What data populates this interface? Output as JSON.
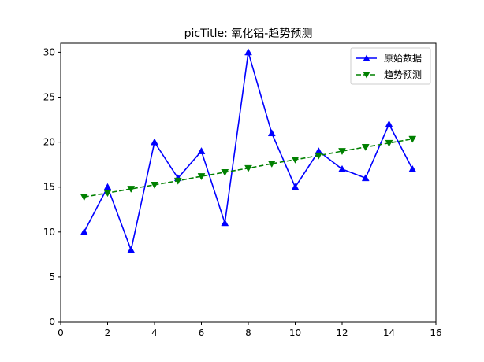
{
  "chart_data": {
    "type": "line",
    "title": "picTitle: 氧化铝-趋势预测",
    "xlabel": "",
    "ylabel": "",
    "xlim": [
      0,
      16
    ],
    "ylim": [
      0,
      31
    ],
    "xticks": [
      0,
      2,
      4,
      6,
      8,
      10,
      12,
      14,
      16
    ],
    "yticks": [
      0,
      5,
      10,
      15,
      20,
      25,
      30
    ],
    "grid": false,
    "legend_position": "top-right",
    "x": [
      1,
      2,
      3,
      4,
      5,
      6,
      7,
      8,
      9,
      10,
      11,
      12,
      13,
      14,
      15
    ],
    "series": [
      {
        "name": "原始数据",
        "color": "#0000ff",
        "marker": "triangle-up",
        "line_style": "solid",
        "values": [
          10,
          15,
          8,
          20,
          16,
          19,
          11,
          30,
          21,
          15,
          19,
          17,
          16,
          22,
          17
        ]
      },
      {
        "name": "趋势预测",
        "color": "#008000",
        "marker": "triangle-down",
        "line_style": "dashed",
        "values": [
          13.9,
          14.35,
          14.8,
          15.25,
          15.7,
          16.2,
          16.65,
          17.1,
          17.6,
          18.05,
          18.5,
          19.0,
          19.45,
          19.9,
          20.35
        ]
      }
    ]
  }
}
